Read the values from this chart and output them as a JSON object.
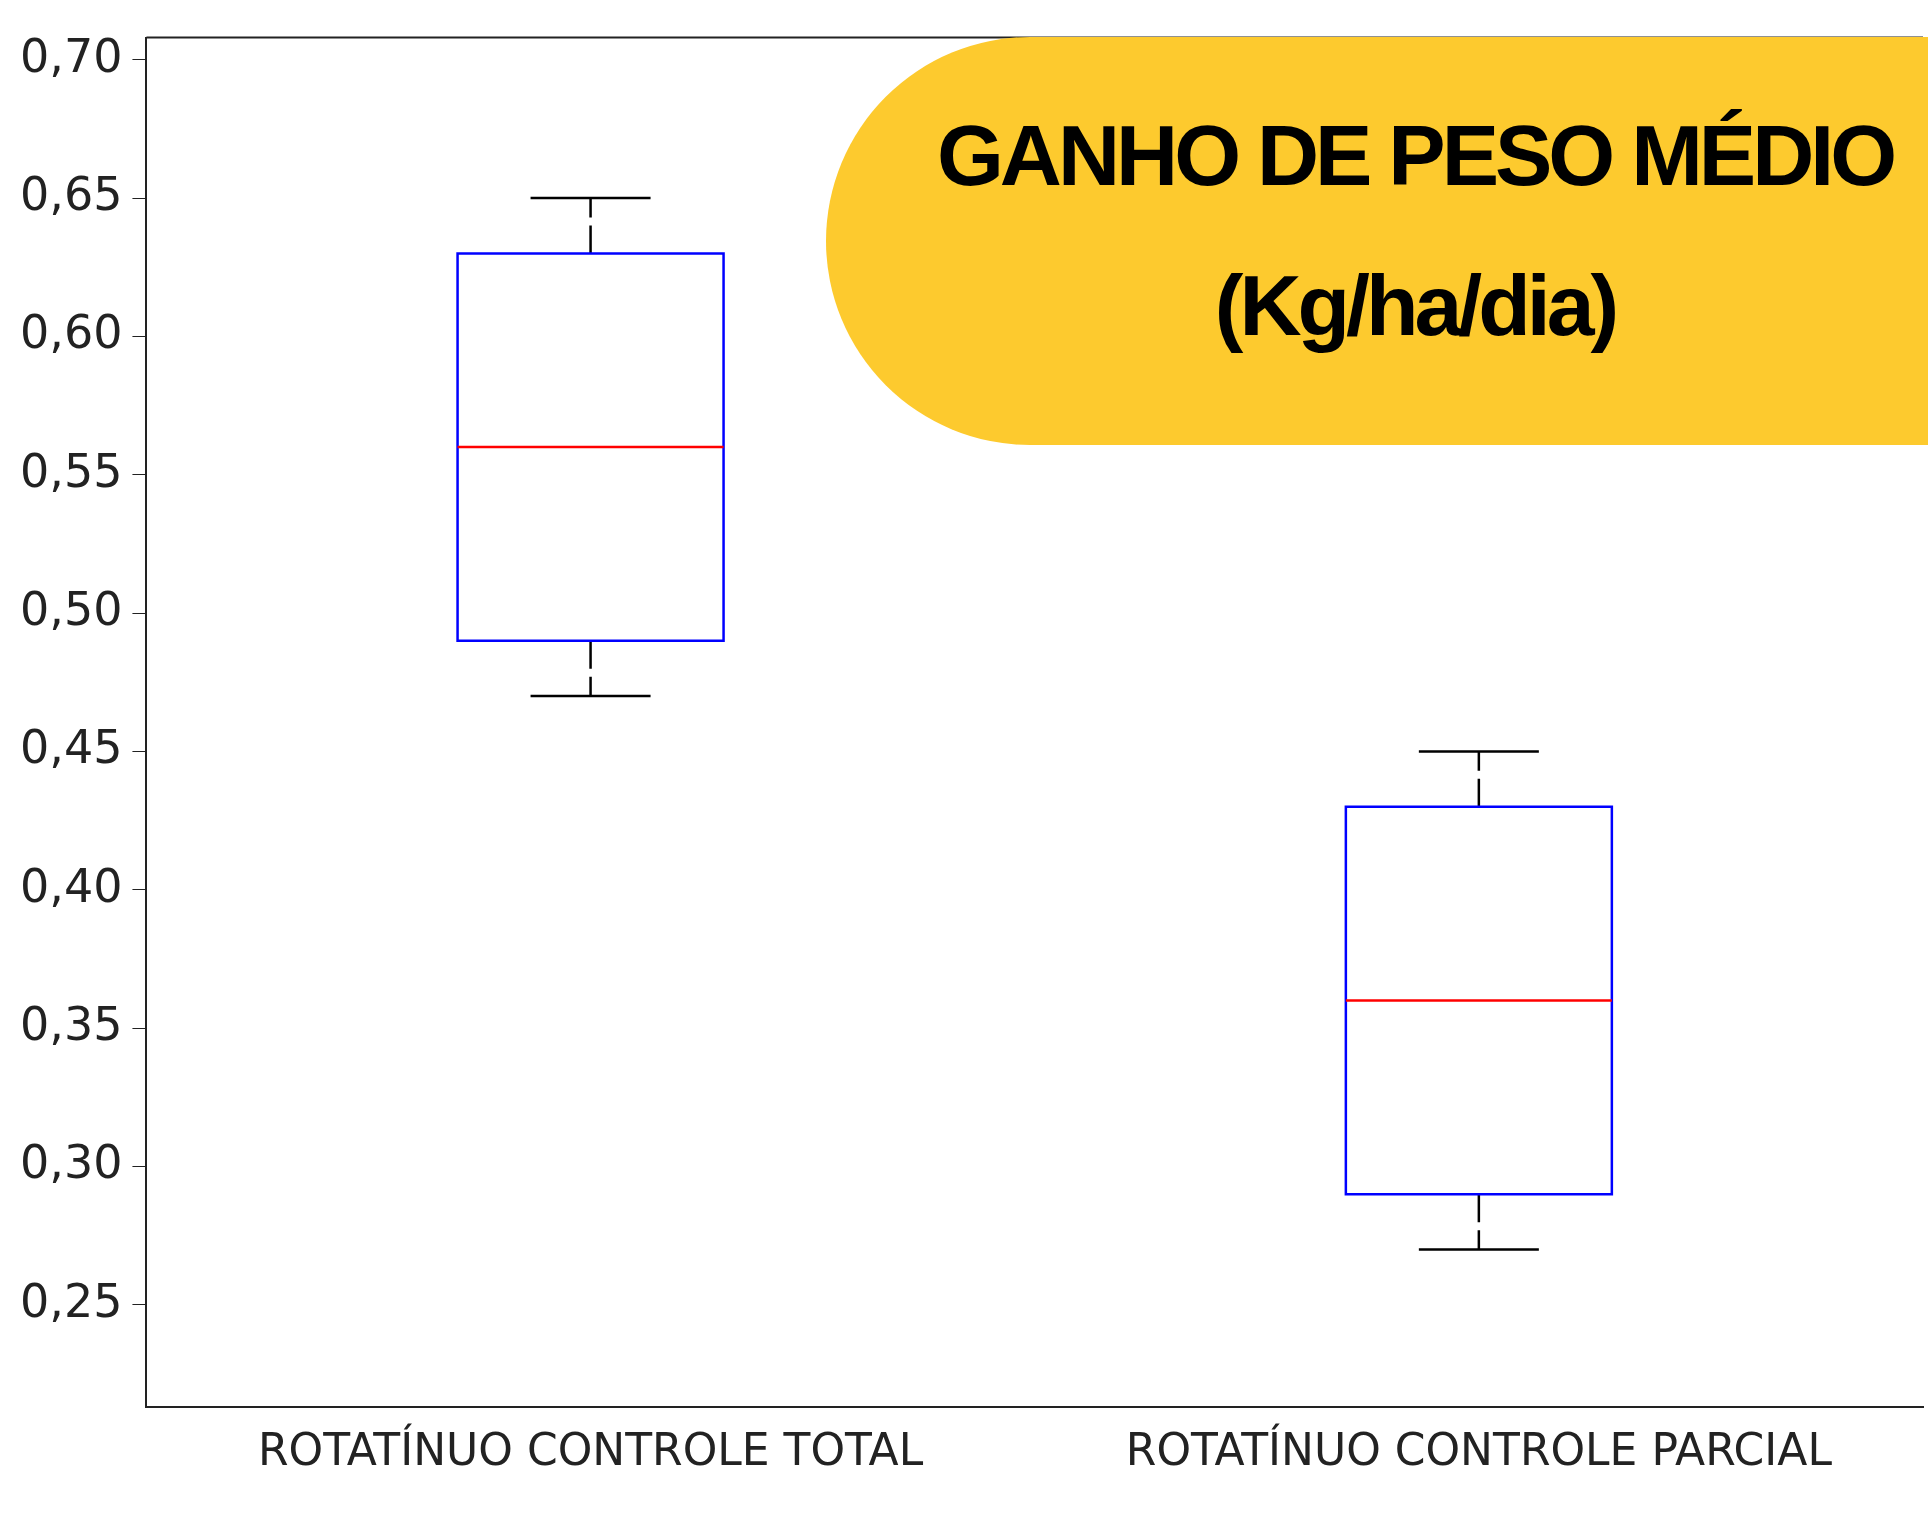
{
  "chart_data": {
    "type": "box",
    "title": "GANHO DE PESO MÉDIO (Kg/ha/dia)",
    "categories": [
      "ROTATÍNUO CONTROLE TOTAL",
      "ROTATÍNUO CONTROLE PARCIAL"
    ],
    "series": [
      {
        "color": "#0000ff",
        "boxes": [
          {
            "low": 0.47,
            "q1": 0.49,
            "median": 0.56,
            "q3": 0.63,
            "high": 0.65
          },
          {
            "low": 0.27,
            "q1": 0.29,
            "median": 0.36,
            "q3": 0.43,
            "high": 0.45
          }
        ]
      }
    ],
    "ylim": [
      0.213,
      0.708
    ],
    "yticks": [
      {
        "value": 0.25,
        "label": "0,25"
      },
      {
        "value": 0.3,
        "label": "0,30"
      },
      {
        "value": 0.35,
        "label": "0,35"
      },
      {
        "value": 0.4,
        "label": "0,40"
      },
      {
        "value": 0.45,
        "label": "0,45"
      },
      {
        "value": 0.5,
        "label": "0,50"
      },
      {
        "value": 0.55,
        "label": "0,55"
      },
      {
        "value": 0.6,
        "label": "0,60"
      },
      {
        "value": 0.65,
        "label": "0,65"
      },
      {
        "value": 0.7,
        "label": "0,70"
      }
    ],
    "grid": false,
    "legend": false
  }
}
